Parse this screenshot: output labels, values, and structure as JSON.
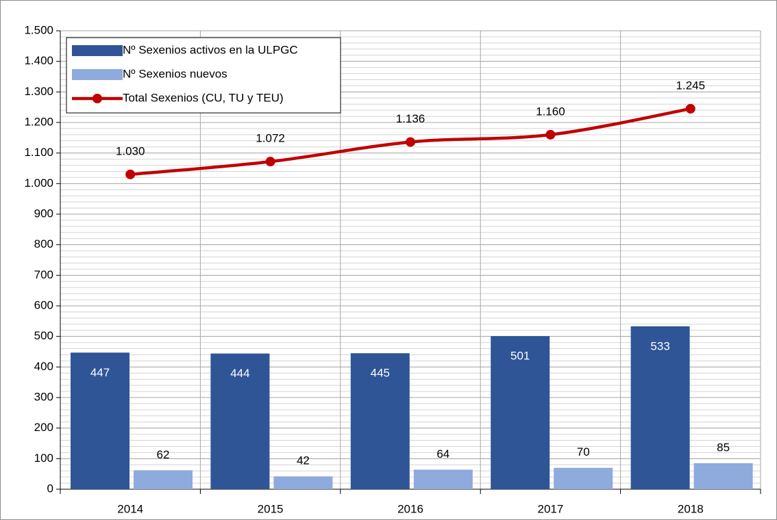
{
  "chart_data": {
    "type": "bar",
    "categories": [
      "2014",
      "2015",
      "2016",
      "2017",
      "2018"
    ],
    "series": [
      {
        "name": "Nº Sexenios activos en la ULPGC",
        "type": "bar",
        "color": "#2f5597",
        "values": [
          447,
          444,
          445,
          501,
          533
        ]
      },
      {
        "name": "Nº Sexenios nuevos",
        "type": "bar",
        "color": "#8faadc",
        "values": [
          62,
          42,
          64,
          70,
          85
        ]
      },
      {
        "name": "Total Sexenios (CU, TU y TEU)",
        "type": "line",
        "color": "#c00000",
        "values": [
          1030,
          1072,
          1136,
          1160,
          1245
        ],
        "value_labels": [
          "1.030",
          "1.072",
          "1.136",
          "1.160",
          "1.245"
        ]
      }
    ],
    "ylim": [
      0,
      1500
    ],
    "yticks": [
      0,
      100,
      200,
      300,
      400,
      500,
      600,
      700,
      800,
      900,
      {
        "value": 1000,
        "label": "1.000"
      },
      {
        "value": 1100,
        "label": "1.100"
      },
      {
        "value": 1200,
        "label": "1.200"
      },
      {
        "value": 1300,
        "label": "1.300"
      },
      {
        "value": 1400,
        "label": "1.400"
      },
      {
        "value": 1500,
        "label": "1.500"
      }
    ],
    "yminor_step": 20,
    "grid": true,
    "legend": "top-left"
  }
}
